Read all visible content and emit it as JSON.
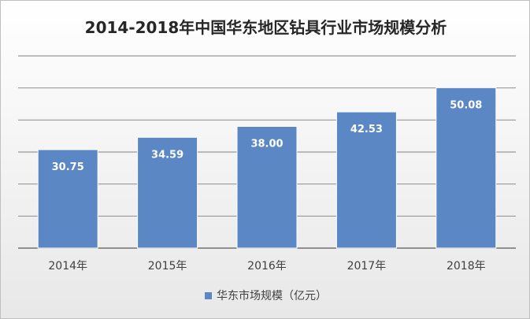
{
  "chart_data": {
    "type": "bar",
    "title": "2014-2018年中国华东地区钻具行业市场规模分析",
    "categories": [
      "2014年",
      "2015年",
      "2016年",
      "2017年",
      "2018年"
    ],
    "series": [
      {
        "name": "华东市场规模（亿元）",
        "values": [
          30.75,
          34.59,
          38.0,
          42.53,
          50.08
        ],
        "labels": [
          "30.75",
          "34.59",
          "38.00",
          "42.53",
          "50.08"
        ]
      }
    ],
    "ylim": [
      0,
      60
    ],
    "grid": true,
    "legend_position": "bottom",
    "colors": {
      "bar": "#5b87c5",
      "bar_border": "#ffffff",
      "grid": "#7f7f7f",
      "axis_text": "#404040"
    }
  }
}
